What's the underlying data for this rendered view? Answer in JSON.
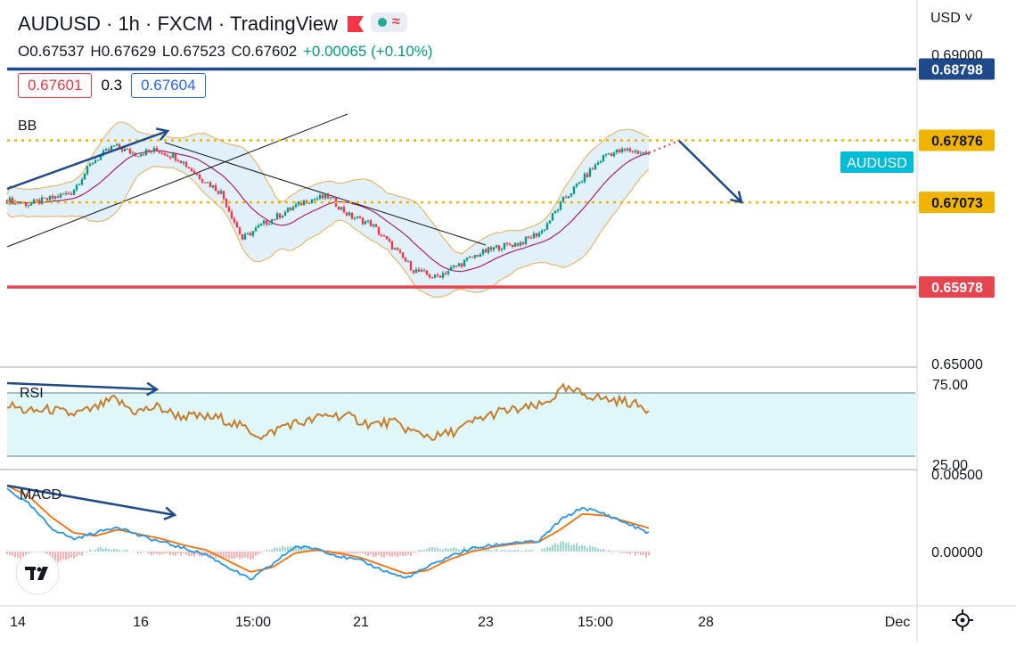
{
  "header": {
    "title": "AUDUSD · 1h · FXCM · TradingView",
    "open": "O0.67537",
    "high": "H0.67629",
    "low": "L0.67523",
    "close": "C0.67602",
    "change": "+0.00065 (+0.10%)",
    "bid": "0.67601",
    "spread": "0.3",
    "ask": "0.67604",
    "currency": "USD ˅"
  },
  "colors": {
    "up": "#089981",
    "down": "#f23645",
    "resistance": "#1e4a8c",
    "support": "#e5454f",
    "level": "#f0b400",
    "band": "#e2f0fa",
    "band_edge": "#e8b86d",
    "basis": "#a6216e",
    "rsi": "#c47e2d",
    "macd": "#2196f3",
    "signal": "#ff6d00",
    "annotation": "#1e4a8c"
  },
  "chart_data": [
    {
      "type": "candlestick",
      "symbol": "AUDUSD",
      "indicator_label": "BB",
      "x_tick_labels": [
        "14",
        "16",
        "15:00",
        "21",
        "23",
        "15:00",
        "28",
        "Dec"
      ],
      "y_tick_labels": [
        "0.69000",
        "0.65000"
      ],
      "ylim": [
        0.65,
        0.6925
      ],
      "levels": [
        {
          "label": "0.68798",
          "value": 0.68798,
          "style": "solid",
          "color": "#1e4a8c"
        },
        {
          "label": "0.67876",
          "value": 0.67876,
          "style": "dotted",
          "color": "#f0b400"
        },
        {
          "label": "0.67073",
          "value": 0.67073,
          "style": "dotted",
          "color": "#f0b400"
        },
        {
          "label": "0.65978",
          "value": 0.65978,
          "style": "solid",
          "color": "#e5454f"
        }
      ],
      "last_price_label": "AUDUSD",
      "close_path": [
        [
          0,
          0.671
        ],
        [
          8,
          0.6705
        ],
        [
          16,
          0.6712
        ],
        [
          24,
          0.672
        ],
        [
          32,
          0.676
        ],
        [
          40,
          0.678
        ],
        [
          48,
          0.677
        ],
        [
          56,
          0.6775
        ],
        [
          64,
          0.6765
        ],
        [
          72,
          0.674
        ],
        [
          80,
          0.672
        ],
        [
          88,
          0.666
        ],
        [
          96,
          0.668
        ],
        [
          104,
          0.6695
        ],
        [
          112,
          0.671
        ],
        [
          120,
          0.6715
        ],
        [
          128,
          0.669
        ],
        [
          136,
          0.668
        ],
        [
          144,
          0.665
        ],
        [
          152,
          0.662
        ],
        [
          160,
          0.661
        ],
        [
          168,
          0.6625
        ],
        [
          176,
          0.664
        ],
        [
          184,
          0.665
        ],
        [
          192,
          0.6655
        ],
        [
          200,
          0.667
        ],
        [
          208,
          0.671
        ],
        [
          216,
          0.674
        ],
        [
          224,
          0.677
        ],
        [
          232,
          0.6775
        ],
        [
          240,
          0.677
        ]
      ]
    },
    {
      "type": "line",
      "indicator_label": "RSI",
      "y_tick_labels": [
        "75.00",
        "25.00"
      ],
      "ylim": [
        25,
        75
      ],
      "series": [
        {
          "values": [
            66,
            60,
            62,
            58,
            62,
            70,
            60,
            64,
            57,
            56,
            55,
            48,
            40,
            50,
            52,
            58,
            56,
            50,
            52,
            44,
            40,
            45,
            54,
            60,
            62,
            65,
            78,
            74,
            70,
            68,
            62
          ]
        }
      ]
    },
    {
      "type": "line",
      "indicator_label": "MACD",
      "y_tick_labels": [
        "0.00500",
        "0.00000"
      ],
      "ylim": [
        -0.0024,
        0.0052
      ],
      "series": [
        {
          "values": [
            0.004,
            0.003,
            0.0015,
            0.0008,
            0.0012,
            0.0016,
            0.001,
            0.0006,
            0.0002,
            -0.0002,
            -0.001,
            -0.0018,
            -0.0008,
            0.0003,
            0.0002,
            -0.0003,
            -0.0006,
            -0.0012,
            -0.0017,
            -0.001,
            -0.0003,
            0.0002,
            0.0004,
            0.0006,
            0.0006,
            0.002,
            0.0028,
            0.0024,
            0.0018,
            0.0012
          ]
        },
        {
          "values": [
            0.0042,
            0.0035,
            0.0022,
            0.0012,
            0.001,
            0.0014,
            0.0011,
            0.0008,
            0.0004,
            0.0001,
            -0.0006,
            -0.0013,
            -0.001,
            -0.0001,
            0.0001,
            -0.0001,
            -0.0004,
            -0.0009,
            -0.0014,
            -0.0012,
            -0.0005,
            0.0,
            0.0003,
            0.0005,
            0.0006,
            0.0014,
            0.0024,
            0.0023,
            0.0019,
            0.0015
          ]
        }
      ]
    }
  ]
}
